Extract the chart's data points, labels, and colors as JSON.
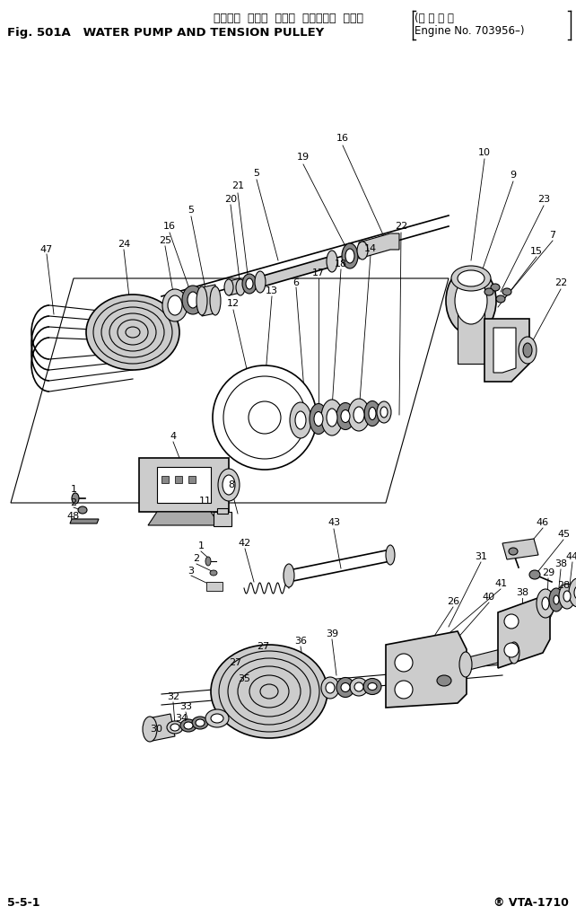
{
  "title_jp": "ウォータ  ポンプ  および  テンション  プーリ",
  "title_en": "Fig. 501A   WATER PUMP AND TENSION PULLEY",
  "title_right_l1": "(適 用 号 機",
  "title_right_l2": "Engine No. 703956–)",
  "footer_left": "5-5-1",
  "footer_right": "® VTA-1710",
  "bg": "#ffffff",
  "fw": 6.42,
  "fh": 10.19,
  "dpi": 100
}
